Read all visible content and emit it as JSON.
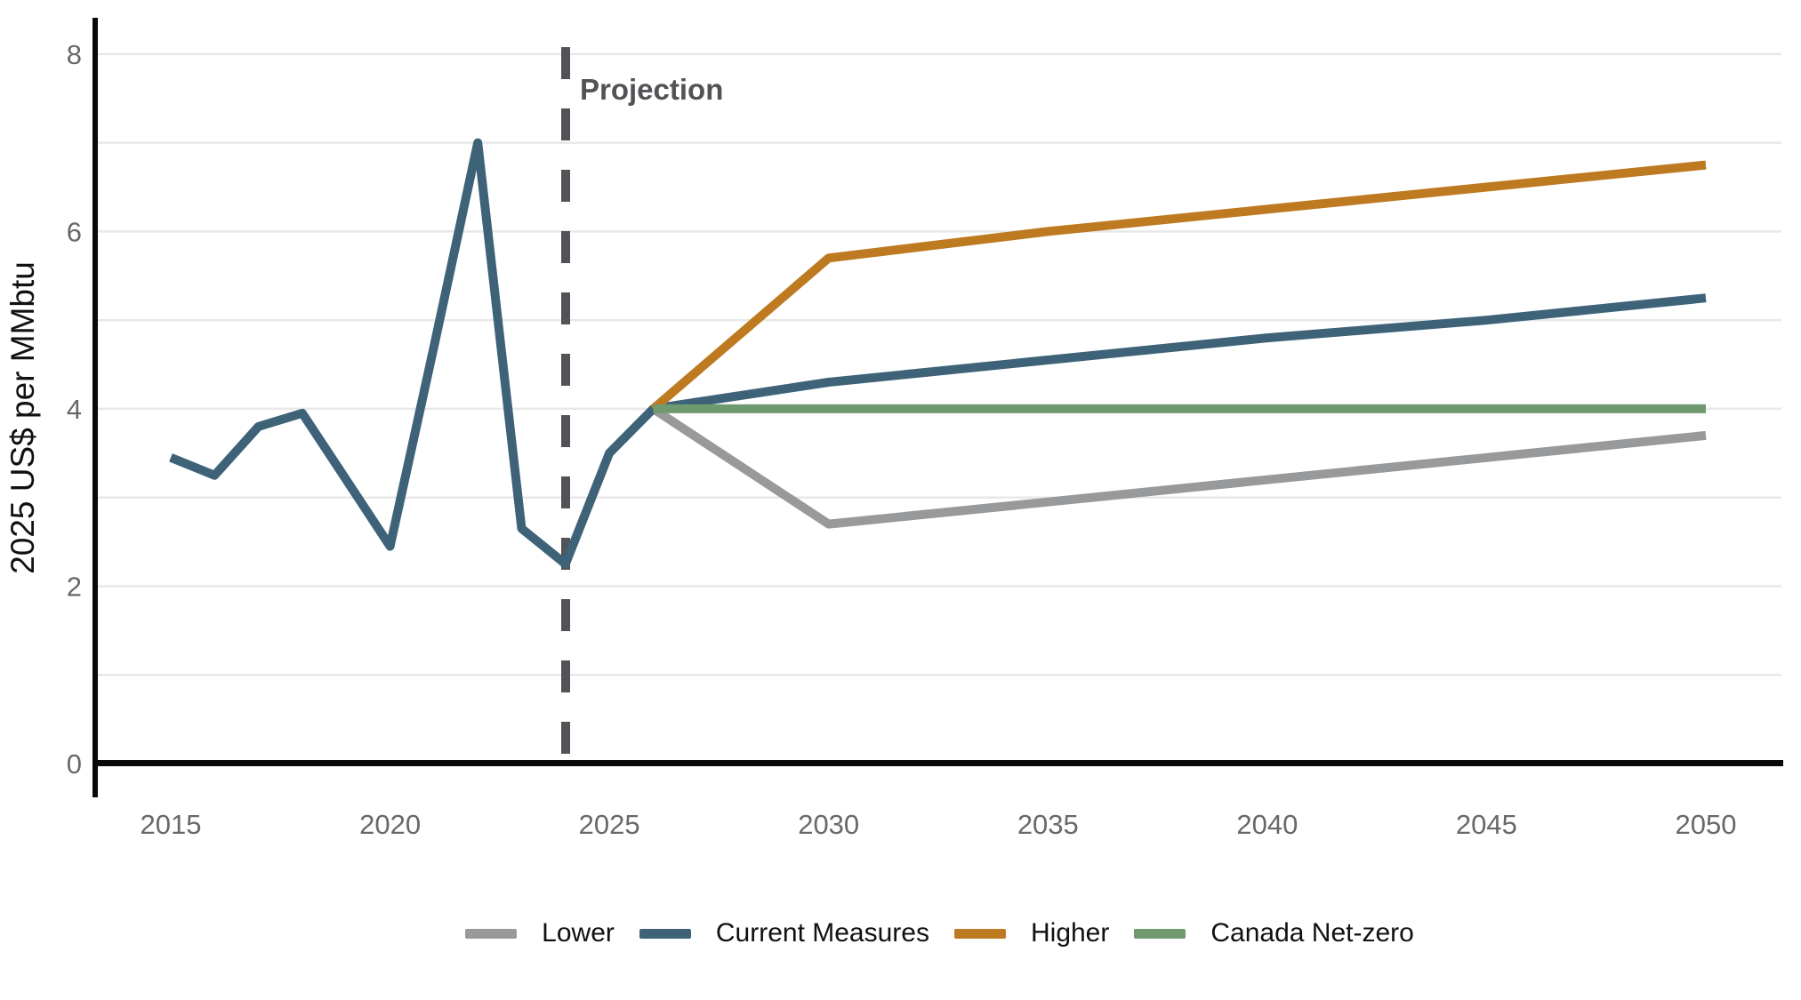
{
  "annotations": {
    "projection_label": "Projection",
    "projection_line_year": 2024
  },
  "y_axis": {
    "title": "2025 US$ per MMbtu",
    "tick_labels": [
      "0",
      "2",
      "4",
      "6",
      "8"
    ],
    "tick_values": [
      0,
      2,
      4,
      6,
      8
    ],
    "gridline_values": [
      1,
      2,
      3,
      4,
      5,
      6,
      7,
      8
    ]
  },
  "x_axis": {
    "tick_labels": [
      "2015",
      "2020",
      "2025",
      "2030",
      "2035",
      "2040",
      "2045",
      "2050"
    ],
    "tick_values": [
      2015,
      2020,
      2025,
      2030,
      2035,
      2040,
      2045,
      2050
    ]
  },
  "legend": {
    "position": "bottom-center",
    "items": [
      {
        "label": "Lower",
        "color": "#98999b"
      },
      {
        "label": "Current Measures",
        "color": "#3e6378"
      },
      {
        "label": "Higher",
        "color": "#bd7a21"
      },
      {
        "label": "Canada Net-zero",
        "color": "#6f9a70"
      }
    ]
  },
  "colors": {
    "gridline": "#e8e8e8",
    "spine": "#0a0a0a",
    "tick_text": "#686868",
    "projection": "#525356"
  },
  "chart_data": {
    "type": "line",
    "title": "",
    "xlabel": "",
    "ylabel": "2025 US$ per MMbtu",
    "ylim": [
      0,
      8.4
    ],
    "xlim": [
      2013.3,
      2051.7
    ],
    "grid": "horizontal",
    "legend_position": "bottom",
    "projection_start_year": 2024,
    "series": [
      {
        "name": "Lower",
        "color": "#98999b",
        "x": [
          2026,
          2030,
          2035,
          2040,
          2045,
          2050
        ],
        "values": [
          4.0,
          2.7,
          2.95,
          3.2,
          3.45,
          3.7
        ]
      },
      {
        "name": "Current Measures",
        "color": "#3e6378",
        "x": [
          2015,
          2016,
          2017,
          2018,
          2019,
          2020,
          2021,
          2022,
          2023,
          2024,
          2025,
          2026,
          2030,
          2035,
          2040,
          2045,
          2050
        ],
        "values": [
          3.45,
          3.25,
          3.8,
          3.95,
          3.2,
          2.45,
          4.7,
          7.0,
          2.65,
          2.25,
          3.5,
          4.0,
          4.3,
          4.55,
          4.8,
          5.0,
          5.25
        ]
      },
      {
        "name": "Higher",
        "color": "#bd7a21",
        "x": [
          2026,
          2030,
          2035,
          2040,
          2045,
          2050
        ],
        "values": [
          4.0,
          5.7,
          6.0,
          6.25,
          6.5,
          6.75
        ]
      },
      {
        "name": "Canada Net-zero",
        "color": "#6f9a70",
        "x": [
          2026,
          2030,
          2035,
          2040,
          2045,
          2050
        ],
        "values": [
          4.0,
          4.0,
          4.0,
          4.0,
          4.0,
          4.0
        ]
      }
    ]
  }
}
